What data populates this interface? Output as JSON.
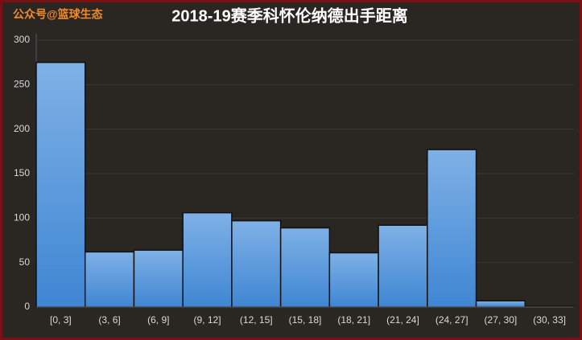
{
  "watermark": "公众号@篮球生态",
  "chart_data": {
    "type": "bar",
    "title": "2018-19赛季科怀伦纳德出手距离",
    "categories": [
      "[0, 3]",
      "(3, 6]",
      "(6, 9]",
      "(9, 12]",
      "(12, 15]",
      "(15, 18]",
      "(18, 21]",
      "(21, 24]",
      "(24, 27]",
      "(27, 30]",
      "(30, 33]"
    ],
    "values": [
      275,
      62,
      64,
      106,
      97,
      89,
      61,
      92,
      177,
      7,
      1
    ],
    "color": "#4a90d9",
    "ylim": [
      0,
      300
    ],
    "yticks": [
      0,
      50,
      100,
      150,
      200,
      250,
      300
    ],
    "grid": true
  }
}
